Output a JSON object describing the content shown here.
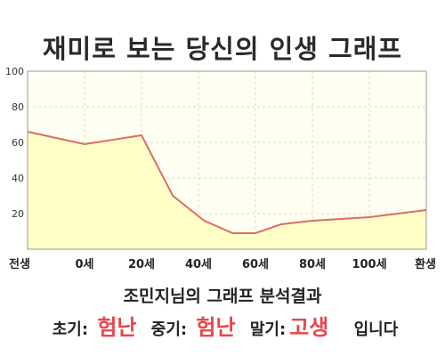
{
  "title": "재미로 보는 당신의 인생 그래프",
  "chart_data": {
    "type": "area",
    "title": "재미로 보는 당신의 인생 그래프",
    "x_labels": [
      "전생",
      "0세",
      "20세",
      "40세",
      "60세",
      "80세",
      "100세",
      "환생"
    ],
    "points": [
      {
        "x": 0,
        "y": 66
      },
      {
        "x": 1,
        "y": 59
      },
      {
        "x": 2,
        "y": 64
      },
      {
        "x": 2.55,
        "y": 30
      },
      {
        "x": 3.1,
        "y": 16
      },
      {
        "x": 3.6,
        "y": 9
      },
      {
        "x": 4.0,
        "y": 9
      },
      {
        "x": 4.45,
        "y": 14
      },
      {
        "x": 5.0,
        "y": 16
      },
      {
        "x": 6.0,
        "y": 18
      },
      {
        "x": 7.0,
        "y": 22
      }
    ],
    "y_ticks": [
      "100",
      "80",
      "60",
      "40",
      "20"
    ],
    "ylim": [
      0,
      100
    ],
    "grid": true,
    "colors": {
      "line": "#e06a66",
      "fill": "#ffffc6",
      "plot_bg": "#fffff2",
      "grid": "#dcdcb8"
    }
  },
  "result": {
    "heading": "조민지님의 그래프 분석결과",
    "early_label": "초기:",
    "early_value": "험난",
    "middle_label": "중기:",
    "middle_value": "험난",
    "late_label": "말기:",
    "late_value": "고생",
    "suffix": "입니다"
  }
}
